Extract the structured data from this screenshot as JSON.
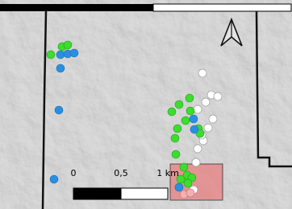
{
  "scale_bar": {
    "labels": [
      "0",
      "0,5",
      "1 km"
    ]
  }
}
